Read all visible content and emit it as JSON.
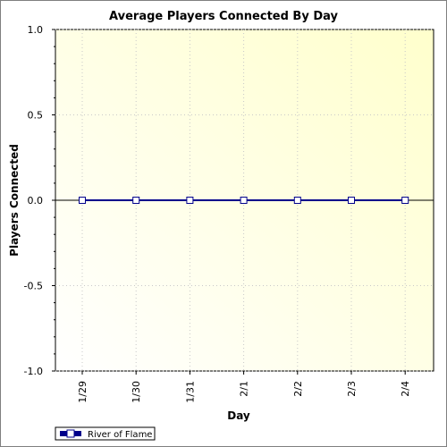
{
  "chart_data": {
    "type": "line",
    "title": "Average Players Connected By Day",
    "xlabel": "Day",
    "ylabel": "Players Connected",
    "categories": [
      "1/29",
      "1/30",
      "1/31",
      "2/1",
      "2/2",
      "2/3",
      "2/4"
    ],
    "series": [
      {
        "name": "River of Flame",
        "values": [
          0,
          0,
          0,
          0,
          0,
          0,
          0
        ]
      }
    ],
    "ylim": [
      -1.0,
      1.0
    ],
    "yticks": [
      "1.0",
      "0.5",
      "0.0",
      "-0.5",
      "-1.0"
    ],
    "grid": true,
    "legend_position": "bottom-left",
    "colors": {
      "series": "#00008b",
      "marker_fill": "#ffffff",
      "plot_bg_from": "#ffffff",
      "plot_bg_to": "#ffffcc",
      "grid": "#c8c8c8",
      "zero_line": "#000000"
    }
  }
}
